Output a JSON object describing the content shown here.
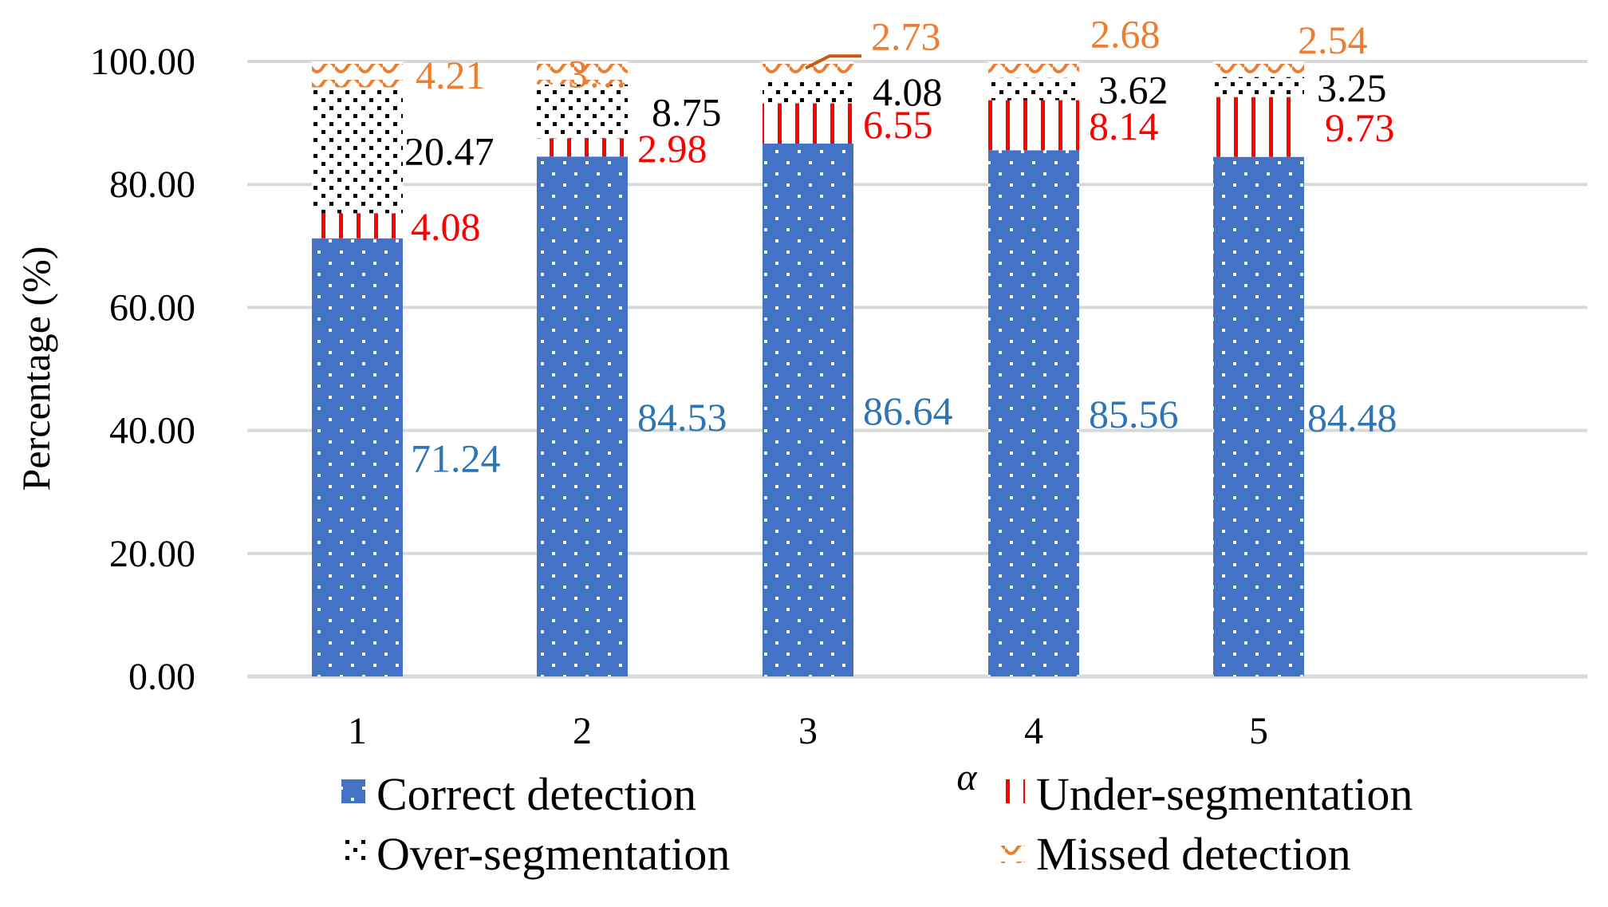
{
  "chart_data": {
    "type": "bar",
    "stacked": true,
    "title": "",
    "xlabel": "α",
    "ylabel": "Percentage (%)",
    "ylim": [
      0,
      100
    ],
    "y_ticks": [
      "0.00",
      "20.00",
      "40.00",
      "60.00",
      "80.00",
      "100.00"
    ],
    "categories": [
      "1",
      "2",
      "3",
      "4",
      "5"
    ],
    "grid": true,
    "legend_position": "bottom",
    "series": [
      {
        "name": "Correct detection",
        "color": "#4472C4",
        "label_color": "#2E75B6",
        "values": [
          71.24,
          84.53,
          86.64,
          85.56,
          84.48
        ],
        "labels": [
          "71.24",
          "84.53",
          "86.64",
          "85.56",
          "84.48"
        ]
      },
      {
        "name": "Under-segmentation",
        "color": "#FF0000",
        "label_color": "#FF0000",
        "values": [
          4.08,
          2.98,
          6.55,
          8.14,
          9.73
        ],
        "labels": [
          "4.08",
          "2.98",
          "6.55",
          "8.14",
          "9.73"
        ]
      },
      {
        "name": "Over-segmentation",
        "color": "#000000",
        "label_color": "#000000",
        "values": [
          20.47,
          8.75,
          4.08,
          3.62,
          3.25
        ],
        "labels": [
          "20.47",
          "8.75",
          "4.08",
          "3.62",
          "3.25"
        ]
      },
      {
        "name": "Missed detection",
        "color": "#ED7D31",
        "label_color": "#ED7D31",
        "values": [
          4.21,
          3.74,
          2.73,
          2.68,
          2.54
        ],
        "labels": [
          "4.21",
          "3…",
          "2.73",
          "2.68",
          "2.54"
        ]
      }
    ]
  }
}
